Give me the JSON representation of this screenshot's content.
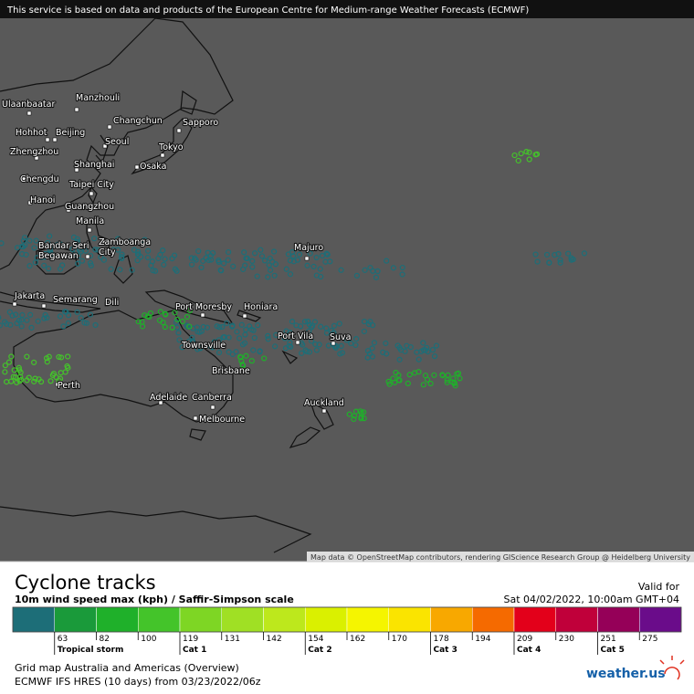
{
  "banner": "This service is based on data and products of the European Centre for Medium-range Weather Forecasts (ECMWF)",
  "attribution": "Map data © OpenStreetMap contributors, rendering GIScience Research Group @ Heidelberg University",
  "cities": [
    "Ulaanbaatar",
    "Manzhouli",
    "Changchun",
    "Sapporo",
    "Hohhot",
    "Beijing",
    "Seoul",
    "Tokyo",
    "Zhengzhou",
    "Shanghai",
    "Osaka",
    "Chengdu",
    "Taipei City",
    "Hanoi",
    "Guangzhou",
    "Manila",
    "Zamboanga City",
    "Bandar Seri Begawan",
    "Majuro",
    "Jakarta",
    "Semarang",
    "Dili",
    "Port Moresby",
    "Honiara",
    "Port Vila",
    "Suva",
    "Townsville",
    "Brisbane",
    "Perth",
    "Adelaide",
    "Canberra",
    "Melbourne",
    "Auckland"
  ],
  "legend": {
    "title": "Cyclone tracks",
    "subtitle": "10m wind speed max (kph) / Saffir-Simpson scale",
    "valid_label": "Valid for",
    "valid_time": "Sat 04/02/2022, 10:00am GMT+04",
    "colors": [
      "#1d6e78",
      "#1a9a3a",
      "#1fb02a",
      "#44c42a",
      "#7ed624",
      "#a0e024",
      "#bde81c",
      "#daf000",
      "#f5f500",
      "#fae400",
      "#f8a800",
      "#f56a00",
      "#e3001a",
      "#c0003a",
      "#950058",
      "#6a0c8a"
    ],
    "ticks": [
      "63",
      "82",
      "100",
      "119",
      "131",
      "142",
      "154",
      "162",
      "170",
      "178",
      "194",
      "209",
      "230",
      "251",
      "275"
    ],
    "categories": [
      "Tropical storm",
      "Cat 1",
      "Cat 2",
      "Cat 3",
      "Cat 4",
      "Cat 5"
    ]
  },
  "footer": {
    "grid_map": "Grid map Australia and Americas (Overview)",
    "model": "ECMWF IFS HRES (10 days) from 03/23/2022/06z",
    "logo": "weather.us"
  }
}
